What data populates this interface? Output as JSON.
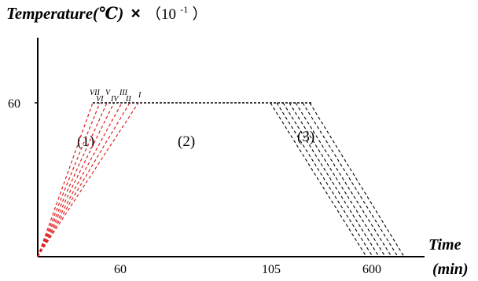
{
  "y_axis": {
    "title_main": "Temperature(℃)",
    "title_mult": "×",
    "title_unit": "（10",
    "title_exp": "-1",
    "title_close": "）",
    "tick_label": "60"
  },
  "x_axis": {
    "title_time": "Time",
    "title_unit": "(min)",
    "tick_labels": [
      "60",
      "105",
      "600"
    ]
  },
  "stages": [
    "(1)",
    "(2)",
    "(3)"
  ],
  "curve_labels": {
    "VII": "VII",
    "VI": "VI",
    "V": "V",
    "IV": "IV",
    "III": "III",
    "II": "II",
    "I": "I"
  },
  "colors": {
    "heating": "#e02020",
    "plateau_cooling": "#000000",
    "axis": "#000000"
  }
}
